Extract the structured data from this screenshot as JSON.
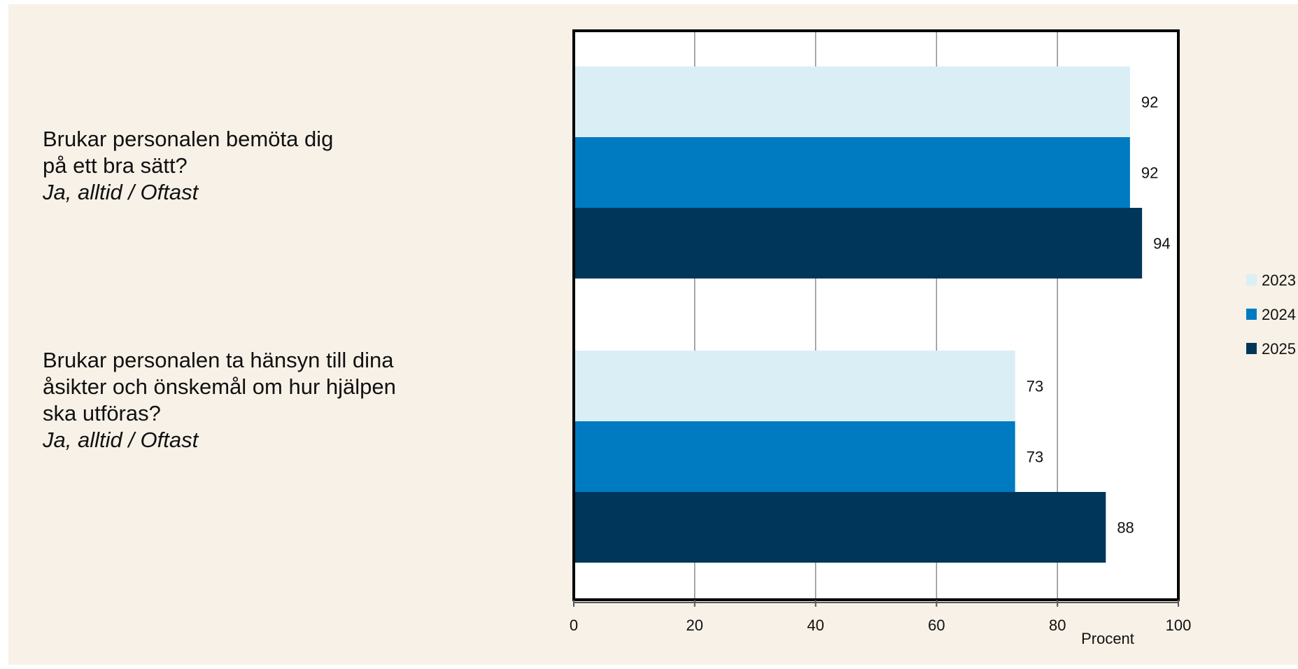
{
  "chart_data": {
    "type": "bar",
    "orientation": "horizontal",
    "categories": [
      {
        "question": "Brukar personalen bemöta dig\npå ett bra sätt?",
        "answer": "Ja, alltid / Oftast"
      },
      {
        "question": "Brukar personalen ta hänsyn till dina\nåsikter och önskemål om hur hjälpen\nska utföras?",
        "answer": "Ja, alltid / Oftast"
      }
    ],
    "series": [
      {
        "name": "2023",
        "values": [
          92,
          73
        ],
        "color": "#daeef5"
      },
      {
        "name": "2024",
        "values": [
          92,
          73
        ],
        "color": "#007ac1"
      },
      {
        "name": "2025",
        "values": [
          94,
          88
        ],
        "color": "#003659"
      }
    ],
    "xlabel": "Procent",
    "xlim": [
      0,
      100
    ],
    "xticks": [
      "0",
      "20",
      "40",
      "60",
      "80",
      "100"
    ],
    "grid": true,
    "legend_position": "right"
  }
}
